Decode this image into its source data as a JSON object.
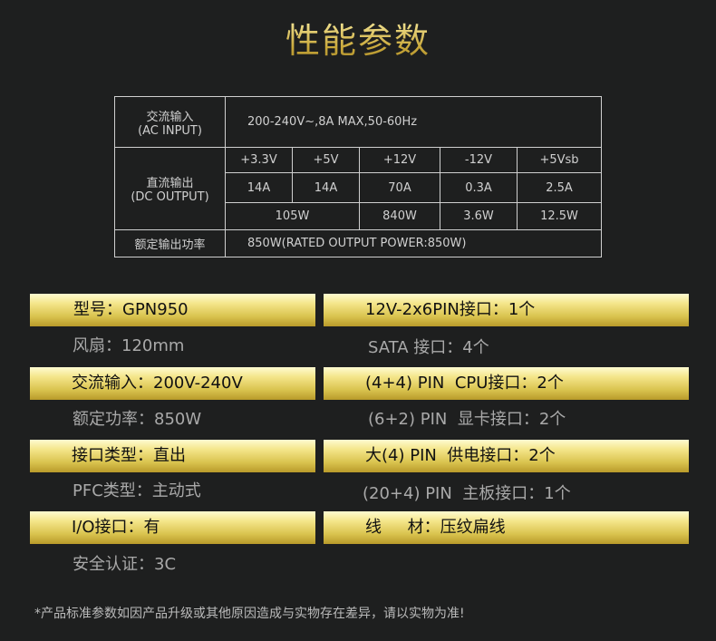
{
  "title": "性能参数",
  "table": {
    "ac_label": "交流输入",
    "ac_label_en": "(AC INPUT)",
    "ac_value": "200-240V~,8A MAX,50-60Hz",
    "dc_label": "直流输出",
    "dc_label_en": "(DC OUTPUT)",
    "voltages": [
      "+3.3V",
      "+5V",
      "+12V",
      "-12V",
      "+5Vsb"
    ],
    "currents": [
      "14A",
      "14A",
      "70A",
      "0.3A",
      "2.5A"
    ],
    "powers": [
      "105W",
      "840W",
      "3.6W",
      "12.5W"
    ],
    "rated_label": "额定输出功率",
    "rated_value": "850W(RATED OUTPUT POWER:850W)"
  },
  "left": [
    "型号：GPN950",
    "风扇：120mm",
    "交流输入：200V-240V",
    "额定功率：850W",
    "接口类型：直出",
    "PFC类型：主动式",
    "I/O接口：有",
    "安全认证：3C"
  ],
  "right": [
    "12V-2x6PIN接口：1个",
    "SATA 接口：4个",
    "(4+4) PIN  CPU接口：2个",
    "(6+2) PIN  显卡接口：2个",
    "大(4) PIN  供电接口：2个",
    "(20+4) PIN  主板接口：1个",
    "线     材：压纹扁线"
  ],
  "footer": "*产品标准参数如因产品升级或其他原因造成与实物存在差异，请以实物为准!",
  "colors": {
    "background": "#1e1f1f",
    "gold": "#d9c34e"
  }
}
